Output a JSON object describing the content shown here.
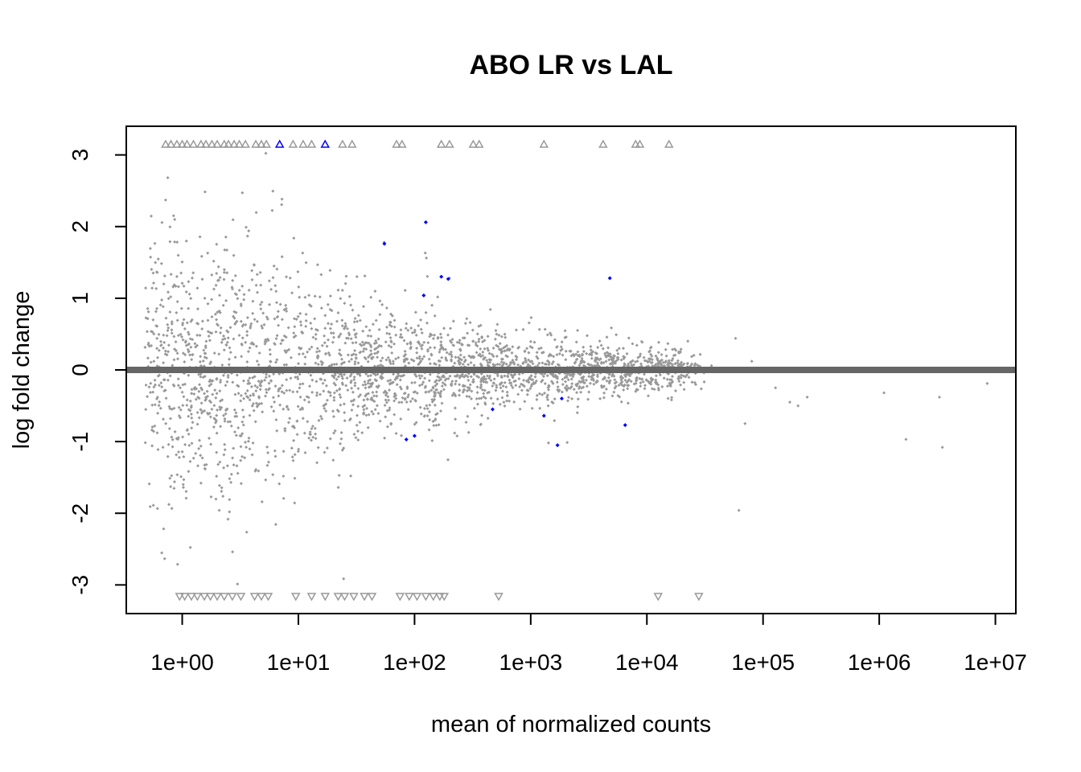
{
  "chart_data": {
    "type": "scatter",
    "title": "ABO LR vs LAL",
    "xlabel": "mean of normalized counts",
    "ylabel": "log fold change",
    "x_scale": "log10",
    "xlim": [
      0.33,
      15000000
    ],
    "ylim": [
      -3.4,
      3.4
    ],
    "x_ticks": [
      {
        "value": 1,
        "label": "1e+00"
      },
      {
        "value": 10,
        "label": "1e+01"
      },
      {
        "value": 100,
        "label": "1e+02"
      },
      {
        "value": 1000,
        "label": "1e+03"
      },
      {
        "value": 10000,
        "label": "1e+04"
      },
      {
        "value": 100000,
        "label": "1e+05"
      },
      {
        "value": 1000000,
        "label": "1e+06"
      },
      {
        "value": 10000000,
        "label": "1e+07"
      }
    ],
    "y_ticks": [
      {
        "value": -3,
        "label": "-3"
      },
      {
        "value": -2,
        "label": "-2"
      },
      {
        "value": -1,
        "label": "-1"
      },
      {
        "value": 0,
        "label": "0"
      },
      {
        "value": 1,
        "label": "1"
      },
      {
        "value": 2,
        "label": "2"
      },
      {
        "value": 3,
        "label": "3"
      }
    ],
    "reference_line": {
      "y": 0,
      "color": "#666666"
    },
    "colors": {
      "not_significant": "#999999",
      "significant": "#0000ff",
      "frame": "#000000"
    },
    "background_points": {
      "description_only_for_rendering": false,
      "seed": 12345,
      "count": 15000
    },
    "significant_points": [
      {
        "x": 55,
        "y": 1.76
      },
      {
        "x": 125,
        "y": 2.06
      },
      {
        "x": 120,
        "y": 1.04
      },
      {
        "x": 170,
        "y": 1.3
      },
      {
        "x": 195,
        "y": 1.27
      },
      {
        "x": 4800,
        "y": 1.28
      },
      {
        "x": 85,
        "y": -0.97
      },
      {
        "x": 100,
        "y": -0.92
      },
      {
        "x": 1300,
        "y": -0.64
      },
      {
        "x": 1700,
        "y": -1.05
      },
      {
        "x": 1850,
        "y": -0.4
      },
      {
        "x": 6500,
        "y": -0.77
      },
      {
        "x": 470,
        "y": -0.55
      }
    ],
    "clipped_points_top": [
      {
        "x": 0.72,
        "sig": false
      },
      {
        "x": 0.8,
        "sig": false
      },
      {
        "x": 0.9,
        "sig": false
      },
      {
        "x": 1.0,
        "sig": false
      },
      {
        "x": 1.1,
        "sig": false
      },
      {
        "x": 1.25,
        "sig": false
      },
      {
        "x": 1.45,
        "sig": false
      },
      {
        "x": 1.6,
        "sig": false
      },
      {
        "x": 1.8,
        "sig": false
      },
      {
        "x": 2.0,
        "sig": false
      },
      {
        "x": 2.3,
        "sig": false
      },
      {
        "x": 2.5,
        "sig": false
      },
      {
        "x": 2.8,
        "sig": false
      },
      {
        "x": 3.1,
        "sig": false
      },
      {
        "x": 3.5,
        "sig": false
      },
      {
        "x": 4.3,
        "sig": false
      },
      {
        "x": 4.8,
        "sig": false
      },
      {
        "x": 5.3,
        "sig": false
      },
      {
        "x": 6.9,
        "sig": true
      },
      {
        "x": 9.0,
        "sig": false
      },
      {
        "x": 11,
        "sig": false
      },
      {
        "x": 13,
        "sig": false
      },
      {
        "x": 17,
        "sig": true
      },
      {
        "x": 24,
        "sig": false
      },
      {
        "x": 29,
        "sig": false
      },
      {
        "x": 70,
        "sig": false
      },
      {
        "x": 78,
        "sig": false
      },
      {
        "x": 170,
        "sig": false
      },
      {
        "x": 200,
        "sig": false
      },
      {
        "x": 320,
        "sig": false
      },
      {
        "x": 360,
        "sig": false
      },
      {
        "x": 1300,
        "sig": false
      },
      {
        "x": 4200,
        "sig": false
      },
      {
        "x": 8000,
        "sig": false
      },
      {
        "x": 8700,
        "sig": false
      },
      {
        "x": 15500,
        "sig": false
      }
    ],
    "clipped_points_bottom": [
      {
        "x": 0.95,
        "sig": false
      },
      {
        "x": 1.05,
        "sig": false
      },
      {
        "x": 1.2,
        "sig": false
      },
      {
        "x": 1.35,
        "sig": false
      },
      {
        "x": 1.55,
        "sig": false
      },
      {
        "x": 1.75,
        "sig": false
      },
      {
        "x": 2.0,
        "sig": false
      },
      {
        "x": 2.3,
        "sig": false
      },
      {
        "x": 2.7,
        "sig": false
      },
      {
        "x": 3.2,
        "sig": false
      },
      {
        "x": 4.2,
        "sig": false
      },
      {
        "x": 4.8,
        "sig": false
      },
      {
        "x": 5.5,
        "sig": false
      },
      {
        "x": 9.5,
        "sig": false
      },
      {
        "x": 13,
        "sig": false
      },
      {
        "x": 17,
        "sig": false
      },
      {
        "x": 22,
        "sig": false
      },
      {
        "x": 25,
        "sig": false
      },
      {
        "x": 30,
        "sig": false
      },
      {
        "x": 37,
        "sig": false
      },
      {
        "x": 43,
        "sig": false
      },
      {
        "x": 75,
        "sig": false
      },
      {
        "x": 90,
        "sig": false
      },
      {
        "x": 105,
        "sig": false
      },
      {
        "x": 125,
        "sig": false
      },
      {
        "x": 145,
        "sig": false
      },
      {
        "x": 165,
        "sig": false
      },
      {
        "x": 180,
        "sig": false
      },
      {
        "x": 530,
        "sig": false
      },
      {
        "x": 12500,
        "sig": false
      },
      {
        "x": 28000,
        "sig": false
      }
    ],
    "outlier_points": [
      {
        "x": 100000,
        "y": 0
      },
      {
        "x": 128000,
        "y": -0.25
      },
      {
        "x": 170000,
        "y": -0.45
      },
      {
        "x": 200000,
        "y": -0.5
      },
      {
        "x": 240000,
        "y": -0.38
      },
      {
        "x": 80000,
        "y": 0.12
      },
      {
        "x": 1100000,
        "y": -0.32
      },
      {
        "x": 1700000,
        "y": -0.97
      },
      {
        "x": 3300000,
        "y": -0.38
      },
      {
        "x": 3500000,
        "y": -1.08
      },
      {
        "x": 8500000,
        "y": -0.19
      },
      {
        "x": 62000,
        "y": -1.96
      },
      {
        "x": 58000,
        "y": 0.44
      },
      {
        "x": 70000,
        "y": -0.75
      },
      {
        "x": 36000,
        "y": 0.06
      }
    ]
  }
}
